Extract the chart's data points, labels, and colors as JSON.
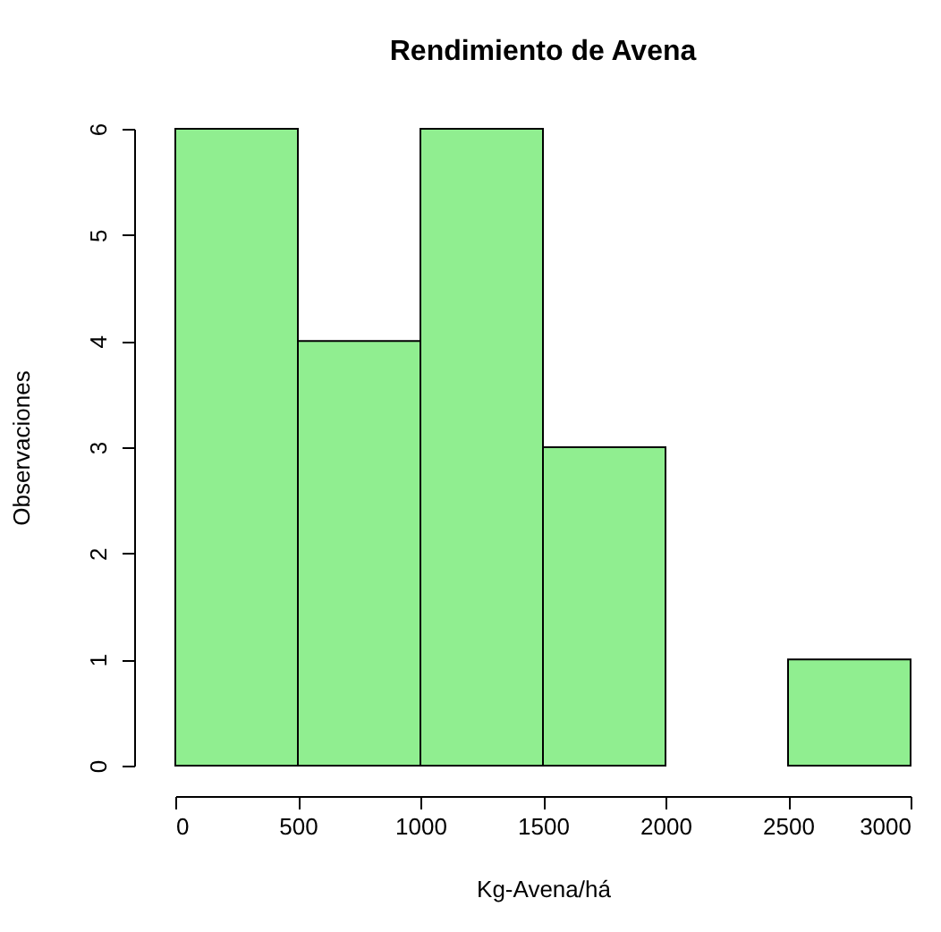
{
  "chart_data": {
    "type": "histogram",
    "title": "Rendimiento de Avena",
    "xlabel": "Kg-Avena/há",
    "ylabel": "Observaciones",
    "bins": [
      0,
      500,
      1000,
      1500,
      2000,
      2500,
      3000
    ],
    "values": [
      6,
      4,
      6,
      3,
      0,
      1
    ],
    "color": "#90ee90",
    "xlim": [
      0,
      3000
    ],
    "xticks": [
      0,
      500,
      1000,
      1500,
      2000,
      2500,
      3000
    ],
    "ylim": [
      0,
      6
    ],
    "yticks": [
      0,
      1,
      2,
      3,
      4,
      5,
      6
    ]
  }
}
